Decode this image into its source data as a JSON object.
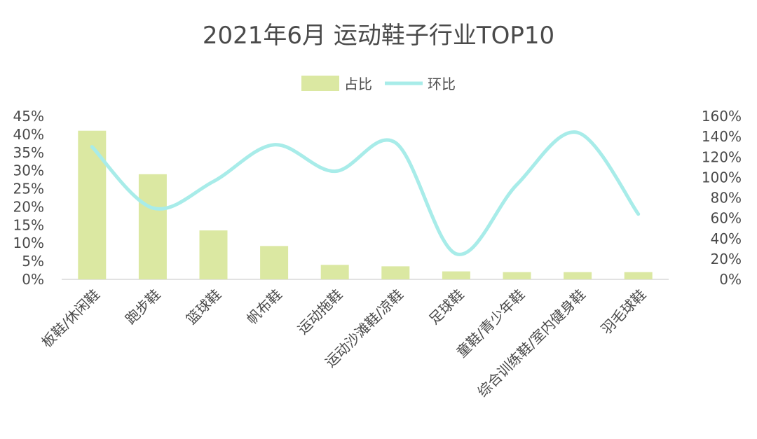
{
  "chart_data": {
    "type": "bar",
    "title": "2021年6月 运动鞋子行业TOP10",
    "categories": [
      "板鞋/休闲鞋",
      "跑步鞋",
      "篮球鞋",
      "帆布鞋",
      "运动拖鞋",
      "运动沙滩鞋/凉鞋",
      "足球鞋",
      "童鞋/青少年鞋",
      "综合训练鞋/室内健身鞋",
      "羽毛球鞋"
    ],
    "series": [
      {
        "name": "占比",
        "type": "bar",
        "axis": "left",
        "color": "#dbe8a2",
        "values": [
          41,
          29,
          13.5,
          9.2,
          4,
          3.6,
          2.2,
          2,
          2,
          2
        ]
      },
      {
        "name": "环比",
        "type": "line",
        "axis": "right",
        "color": "#a8ece9",
        "values": [
          130,
          70,
          96,
          132,
          106,
          134,
          25,
          93,
          144,
          64
        ]
      }
    ],
    "y_left": {
      "min": 0,
      "max": 45,
      "step": 5,
      "ticks": [
        "0%",
        "5%",
        "10%",
        "15%",
        "20%",
        "25%",
        "30%",
        "35%",
        "40%",
        "45%"
      ]
    },
    "y_right": {
      "min": 0,
      "max": 160,
      "step": 20,
      "ticks": [
        "0%",
        "20%",
        "40%",
        "60%",
        "80%",
        "100%",
        "120%",
        "140%",
        "160%"
      ]
    },
    "legend": "top-center",
    "grid": false
  }
}
